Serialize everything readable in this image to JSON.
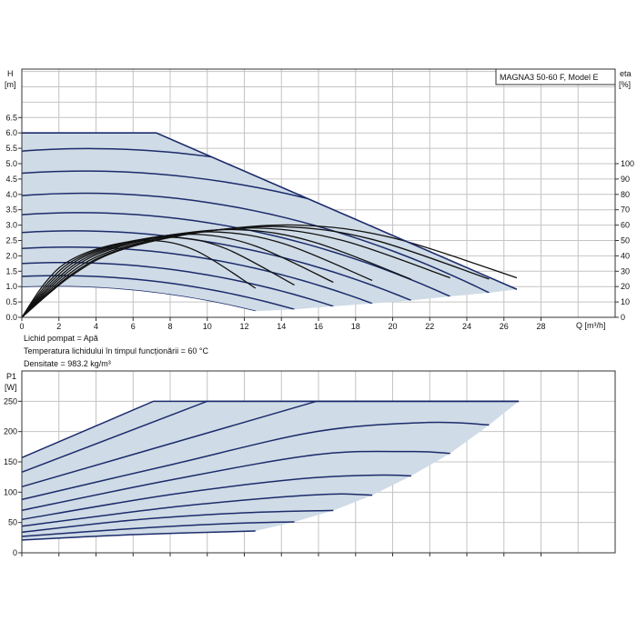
{
  "colors": {
    "shade": "#cfdbe6",
    "speed_curve": "#1b2b6b",
    "eta_curve": "#111111",
    "grid": "#c4c4c4"
  },
  "notes": [
    "Lichid pompat = Apă",
    "Temperatura lichidului în timpul funcționării = 60 °C",
    "Densitate = 983.2 kg/m³"
  ],
  "chart_data": [
    {
      "type": "line",
      "title": "MAGNA3 50-60 F, Model E",
      "xlabel": "Q [m³/h]",
      "ylabel": "H",
      "yunit": "[m]",
      "y2label": "eta",
      "y2unit": "[%]",
      "xlim": [
        0,
        32
      ],
      "ylim": [
        0,
        8.1
      ],
      "y2lim": [
        0,
        162
      ],
      "grid": true,
      "xticks": [
        "0",
        "2",
        "4",
        "6",
        "8",
        "10",
        "12",
        "14",
        "16",
        "18",
        "20",
        "22",
        "24",
        "26",
        "28"
      ],
      "yticks": [
        "0.0",
        "0.5",
        "1.0",
        "1.5",
        "2.0",
        "2.5",
        "3.0",
        "3.5",
        "4.0",
        "4.5",
        "5.0",
        "5.5",
        "6.0",
        "6.5"
      ],
      "y2ticks": [
        "0",
        "10",
        "20",
        "30",
        "40",
        "50",
        "60",
        "70",
        "80",
        "90",
        "100"
      ],
      "max_curve": [
        [
          0,
          6.0
        ],
        [
          7.25,
          6.0
        ],
        [
          26.7,
          0.91
        ]
      ],
      "speed_curves_H": [
        [
          [
            0,
            5.41
          ],
          [
            14.7,
            4.73
          ],
          [
            29.4,
            1.38
          ]
        ],
        [
          [
            0,
            4.69
          ],
          [
            13.7,
            4.1
          ],
          [
            27.4,
            1.19
          ]
        ],
        [
          [
            0,
            3.96
          ],
          [
            12.6,
            3.46
          ],
          [
            25.2,
            0.8
          ]
        ],
        [
          [
            0,
            3.34
          ],
          [
            11.55,
            2.92
          ],
          [
            23.1,
            0.68
          ]
        ],
        [
          [
            0,
            2.76
          ],
          [
            10.5,
            2.41
          ],
          [
            21.0,
            0.55
          ]
        ],
        [
          [
            0,
            2.24
          ],
          [
            9.45,
            1.96
          ],
          [
            18.9,
            0.45
          ]
        ],
        [
          [
            0,
            1.75
          ],
          [
            8.4,
            1.53
          ],
          [
            16.8,
            0.36
          ]
        ],
        [
          [
            0,
            1.33
          ],
          [
            7.35,
            1.16
          ],
          [
            14.7,
            0.26
          ]
        ],
        [
          [
            0,
            0.98
          ],
          [
            6.3,
            0.86
          ],
          [
            12.6,
            0.2
          ]
        ]
      ],
      "eta_curves": [
        [
          [
            0,
            0
          ],
          [
            1.26,
            22.5
          ],
          [
            2.52,
            36.5
          ],
          [
            4.66,
            46.5
          ],
          [
            7.06,
            50
          ],
          [
            9.45,
            43
          ],
          [
            12.6,
            19
          ]
        ],
        [
          [
            0,
            0
          ],
          [
            1.47,
            23.4
          ],
          [
            2.94,
            38
          ],
          [
            5.44,
            48.4
          ],
          [
            8.23,
            52
          ],
          [
            11.0,
            44.7
          ],
          [
            14.7,
            21
          ]
        ],
        [
          [
            0,
            0
          ],
          [
            1.68,
            24.3
          ],
          [
            3.36,
            39.4
          ],
          [
            6.22,
            50.2
          ],
          [
            9.41,
            54
          ],
          [
            12.6,
            46.4
          ],
          [
            16.8,
            22.8
          ]
        ],
        [
          [
            0,
            0
          ],
          [
            1.89,
            25
          ],
          [
            3.78,
            40.5
          ],
          [
            6.99,
            51.6
          ],
          [
            10.58,
            55.5
          ],
          [
            14.18,
            47.7
          ],
          [
            18.9,
            24
          ]
        ],
        [
          [
            0,
            0
          ],
          [
            2.1,
            25.7
          ],
          [
            4.2,
            41.6
          ],
          [
            7.77,
            53
          ],
          [
            11.76,
            57
          ],
          [
            15.75,
            49
          ],
          [
            21,
            24.7
          ]
        ],
        [
          [
            0,
            0
          ],
          [
            2.31,
            26.1
          ],
          [
            4.62,
            42.3
          ],
          [
            8.55,
            53.9
          ],
          [
            12.94,
            58
          ],
          [
            17.33,
            49.9
          ],
          [
            23.1,
            25.7
          ]
        ],
        [
          [
            0,
            0
          ],
          [
            2.52,
            26.6
          ],
          [
            5.04,
            43.1
          ],
          [
            9.32,
            54.9
          ],
          [
            14.11,
            59
          ],
          [
            18.9,
            50.7
          ],
          [
            25.2,
            24.9
          ]
        ],
        [
          [
            0,
            0
          ],
          [
            2.67,
            27
          ],
          [
            5.34,
            43.8
          ],
          [
            9.88,
            55.8
          ],
          [
            14.95,
            60
          ],
          [
            20.03,
            51.6
          ],
          [
            26.7,
            25.7
          ]
        ]
      ]
    },
    {
      "type": "line",
      "ylabel": "P1",
      "yunit": "[W]",
      "xlim": [
        0,
        32
      ],
      "ylim": [
        0,
        300
      ],
      "grid": true,
      "yticks": [
        "0",
        "50",
        "100",
        "150",
        "200",
        "250"
      ],
      "power_curves": [
        [
          [
            0,
            157
          ],
          [
            7.1,
            250
          ],
          [
            26.8,
            250
          ]
        ],
        [
          [
            0,
            133
          ],
          [
            10,
            250
          ]
        ],
        [
          [
            0,
            109
          ],
          [
            15.9,
            250
          ]
        ],
        [
          [
            0,
            88
          ],
          [
            8,
            145
          ],
          [
            15.9,
            200
          ],
          [
            21.9,
            215
          ],
          [
            25.2,
            211
          ]
        ],
        [
          [
            0,
            70
          ],
          [
            8,
            120
          ],
          [
            15.9,
            162
          ],
          [
            21,
            167
          ],
          [
            23.1,
            164
          ]
        ],
        [
          [
            0,
            55
          ],
          [
            8,
            96
          ],
          [
            15,
            122
          ],
          [
            19,
            128
          ],
          [
            21,
            127
          ]
        ],
        [
          [
            0,
            44
          ],
          [
            8,
            75
          ],
          [
            14,
            92
          ],
          [
            17,
            97
          ],
          [
            18.9,
            95
          ]
        ],
        [
          [
            0,
            34
          ],
          [
            6,
            54
          ],
          [
            12,
            66
          ],
          [
            16.8,
            70
          ]
        ],
        [
          [
            0,
            27
          ],
          [
            6,
            40
          ],
          [
            11,
            48
          ],
          [
            14.7,
            51
          ]
        ],
        [
          [
            0,
            21
          ],
          [
            6,
            30
          ],
          [
            12.6,
            36
          ]
        ]
      ]
    }
  ]
}
